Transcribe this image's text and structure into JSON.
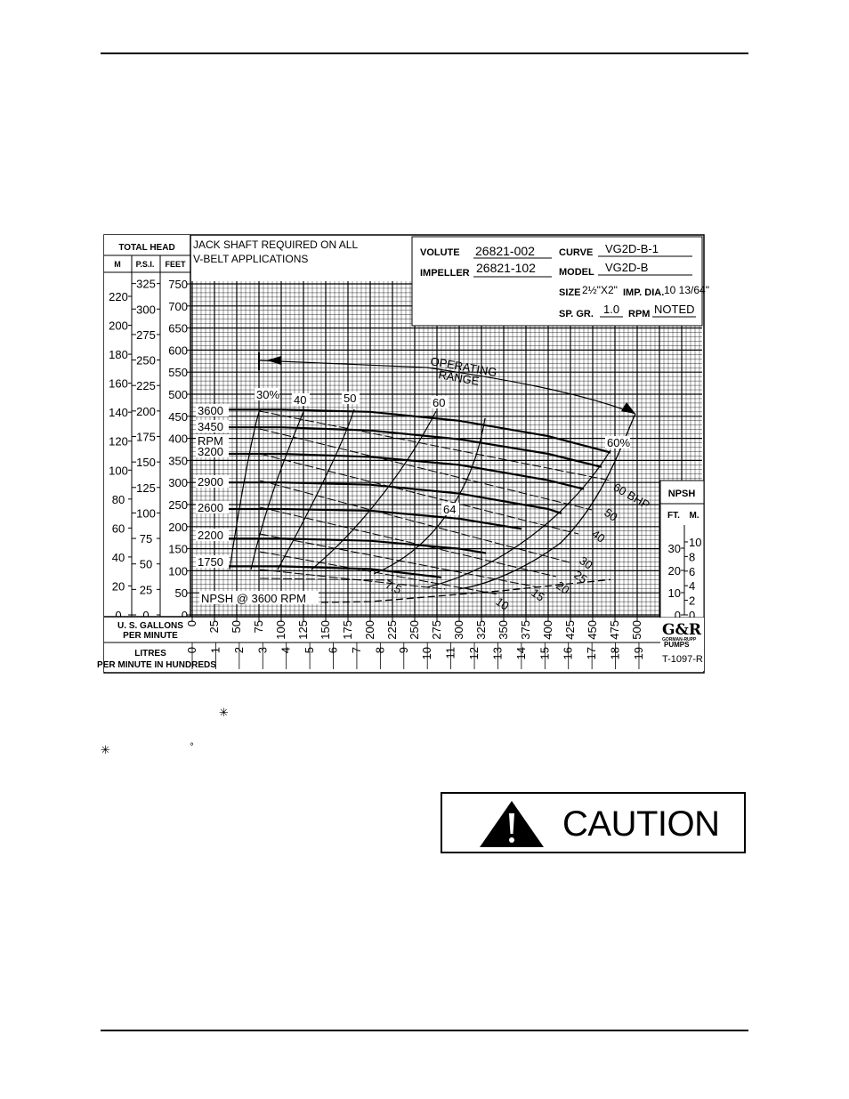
{
  "chart_data": {
    "type": "line",
    "title": "",
    "xlabel": "U. S. GALLONS PER MINUTE",
    "x2label": "LITRES PER MINUTE IN HUNDREDS",
    "ylabel": "TOTAL HEAD",
    "header": {
      "note_line1": "JACK SHAFT REQUIRED ON ALL",
      "note_line2": "V-BELT APPLICATIONS",
      "volute_label": "VOLUTE",
      "volute": "26821-002",
      "curve_label": "CURVE",
      "curve": "VG2D-B-1",
      "impeller_label": "IMPELLER",
      "impeller": "26821-102",
      "model_label": "MODEL",
      "model": "VG2D-B",
      "size_label": "SIZE",
      "size": "2½\"X2\"",
      "imp_dia_label": "IMP. DIA.",
      "imp_dia": "10 13/64\"",
      "sp_gr_label": "SP. GR.",
      "sp_gr": "1.0",
      "rpm_label": "RPM",
      "rpm": "NOTED"
    },
    "head_axis": {
      "title": "TOTAL HEAD",
      "col_m": "M",
      "col_psi": "P.S.I.",
      "col_feet": "FEET",
      "m_ticks": [
        "220",
        "200",
        "180",
        "160",
        "140",
        "120",
        "100",
        "80",
        "60",
        "40",
        "20",
        "0"
      ],
      "psi_ticks": [
        "325",
        "300",
        "275",
        "250",
        "225",
        "200",
        "175",
        "150",
        "125",
        "100",
        "75",
        "50",
        "25",
        "0"
      ],
      "feet_ticks": [
        "750",
        "700",
        "650",
        "600",
        "550",
        "500",
        "450",
        "400",
        "350",
        "300",
        "250",
        "200",
        "150",
        "100",
        "50",
        "0"
      ]
    },
    "gpm_ticks": [
      "0",
      "25",
      "50",
      "75",
      "100",
      "125",
      "150",
      "175",
      "200",
      "225",
      "250",
      "275",
      "300",
      "325",
      "350",
      "375",
      "400",
      "425",
      "450",
      "475",
      "500"
    ],
    "litres_ticks": [
      "0",
      "1",
      "2",
      "3",
      "4",
      "5",
      "6",
      "7",
      "8",
      "9",
      "10",
      "11",
      "12",
      "13",
      "14",
      "15",
      "16",
      "17",
      "18",
      "19"
    ],
    "xlim": [
      0,
      500
    ],
    "ylim": [
      0,
      750
    ],
    "npsh_axis": {
      "title": "NPSH",
      "col_ft": "FT.",
      "col_m": "M.",
      "ft_ticks": [
        "30",
        "20",
        "10",
        "0"
      ],
      "m_ticks": [
        "10",
        "8",
        "6",
        "4",
        "2",
        "0"
      ]
    },
    "rpm_labels": [
      "3600",
      "3450",
      "RPM",
      "3200",
      "2900",
      "2600",
      "2200",
      "1750"
    ],
    "efficiency_labels": [
      "30%",
      "40",
      "50",
      "60",
      "64",
      "60%"
    ],
    "bhp_labels": [
      "60 BHP",
      "50",
      "40",
      "30",
      "25",
      "20",
      "15",
      "10",
      "7.5"
    ],
    "operating_range_label_1": "OPERATING",
    "operating_range_label_2": "RANGE",
    "npsh_curve_label": "NPSH @ 3600 RPM",
    "figure_id": "T-1097-R",
    "logo_text": "G&R",
    "logo_sub_1": "GORMAN-RUPP",
    "logo_sub_2": "PUMPS",
    "series": [
      {
        "name": "3600",
        "x": [
          25,
          100,
          200,
          300,
          400,
          470
        ],
        "y": [
          465,
          465,
          460,
          440,
          405,
          368
        ]
      },
      {
        "name": "3450",
        "x": [
          25,
          100,
          200,
          300,
          400,
          460
        ],
        "y": [
          425,
          425,
          418,
          398,
          365,
          335
        ]
      },
      {
        "name": "3200",
        "x": [
          25,
          100,
          200,
          300,
          400,
          440
        ],
        "y": [
          365,
          365,
          358,
          340,
          305,
          285
        ]
      },
      {
        "name": "2900",
        "x": [
          25,
          100,
          200,
          300,
          400,
          415
        ],
        "y": [
          300,
          300,
          295,
          275,
          240,
          230
        ]
      },
      {
        "name": "2600",
        "x": [
          25,
          100,
          200,
          300,
          370
        ],
        "y": [
          240,
          240,
          236,
          218,
          195
        ]
      },
      {
        "name": "2200",
        "x": [
          25,
          100,
          200,
          300,
          330
        ],
        "y": [
          173,
          173,
          168,
          150,
          140
        ]
      },
      {
        "name": "1750",
        "x": [
          25,
          100,
          200,
          280
        ],
        "y": [
          110,
          110,
          104,
          85
        ]
      },
      {
        "name": "NPSH @ 3600 RPM",
        "x": [
          25,
          200,
          350,
          470
        ],
        "y": [
          25,
          30,
          55,
          80
        ]
      }
    ]
  },
  "page": {
    "asterisk_1": "✳",
    "asterisk_2": "✳",
    "degree": "°",
    "caution": "CAUTION"
  }
}
